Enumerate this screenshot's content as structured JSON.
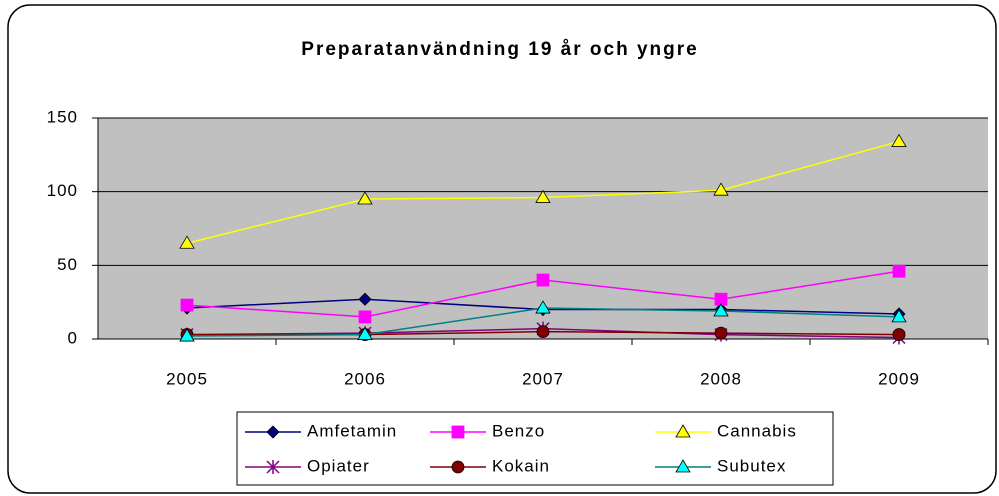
{
  "chart_data": {
    "type": "line",
    "title": "Preparatanvändning 19 år och yngre",
    "categories": [
      "2005",
      "2006",
      "2007",
      "2008",
      "2009"
    ],
    "series": [
      {
        "name": "Amfetamin",
        "color": "#000080",
        "marker": "diamond",
        "values": [
          21,
          27,
          20,
          20,
          17
        ]
      },
      {
        "name": "Benzo",
        "color": "#ff00ff",
        "marker": "square",
        "values": [
          23,
          15,
          40,
          27,
          46
        ]
      },
      {
        "name": "Cannabis",
        "color": "#ffff00",
        "marker": "triangle",
        "values": [
          65,
          95,
          96,
          101,
          134
        ]
      },
      {
        "name": "Opiater",
        "color": "#800080",
        "marker": "star",
        "values": [
          3,
          4,
          7,
          3,
          1
        ]
      },
      {
        "name": "Kokain",
        "color": "#800000",
        "marker": "circle",
        "values": [
          3,
          3,
          5,
          4,
          3
        ]
      },
      {
        "name": "Subutex",
        "color": "#008080",
        "marker": "triangle",
        "values": [
          2,
          3,
          21,
          19,
          15
        ]
      }
    ],
    "ylim": [
      0,
      150
    ],
    "yticks": [
      0,
      50,
      100,
      150
    ],
    "grid": true,
    "plot_background": "#c0c0c0"
  }
}
